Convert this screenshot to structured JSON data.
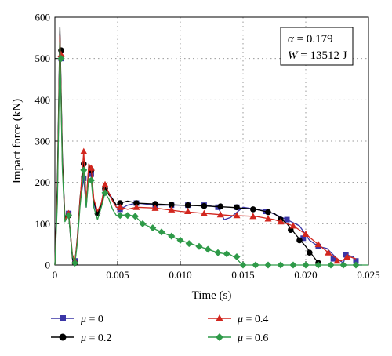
{
  "chart_data": {
    "type": "line",
    "title": "",
    "xlabel": "Time (s)",
    "ylabel": "Impact force (kN)",
    "xlim": [
      0,
      0.025
    ],
    "ylim": [
      0,
      600
    ],
    "x_ticks": [
      "0",
      "0.005",
      "0.010",
      "0.015",
      "0.020",
      "0.025"
    ],
    "y_ticks": [
      "0",
      "100",
      "200",
      "300",
      "400",
      "500",
      "600"
    ],
    "grid": true,
    "legend_position": "bottom",
    "annotation": {
      "line1_symbol": "α",
      "line1_value": " = 0.179",
      "line2_symbol": "W",
      "line2_value": " = 13512 J"
    },
    "series": [
      {
        "name": "μ = 0",
        "label_symbol": "μ",
        "label_value": " = 0",
        "color": "#3a35a6",
        "marker": "square",
        "x": [
          0,
          0.0002,
          0.0004,
          0.0006,
          0.0008,
          0.0011,
          0.0014,
          0.0016,
          0.0018,
          0.002,
          0.0023,
          0.0025,
          0.0027,
          0.0029,
          0.0031,
          0.0034,
          0.0037,
          0.004,
          0.0043,
          0.0046,
          0.0049,
          0.0052,
          0.0058,
          0.0065,
          0.008,
          0.01,
          0.012,
          0.013,
          0.0135,
          0.014,
          0.015,
          0.017,
          0.0185,
          0.0195,
          0.0203,
          0.021,
          0.0217,
          0.0225,
          0.023,
          0.0232,
          0.0238,
          0.0242,
          0.0245
        ],
        "y": [
          0,
          180,
          560,
          250,
          110,
          125,
          20,
          10,
          60,
          150,
          210,
          140,
          230,
          220,
          150,
          120,
          150,
          190,
          175,
          160,
          140,
          135,
          145,
          150,
          145,
          145,
          145,
          140,
          110,
          115,
          140,
          130,
          110,
          95,
          60,
          45,
          40,
          15,
          5,
          25,
          20,
          0,
          0
        ],
        "markers_x": [
          0.0005,
          0.0011,
          0.0016,
          0.0023,
          0.0029,
          0.004,
          0.0052,
          0.0065,
          0.008,
          0.0093,
          0.0106,
          0.0119,
          0.013,
          0.0145,
          0.0168,
          0.0185,
          0.0198,
          0.021,
          0.0222,
          0.0232,
          0.024
        ],
        "markers_y": [
          500,
          125,
          10,
          210,
          220,
          185,
          135,
          150,
          145,
          145,
          145,
          145,
          140,
          140,
          130,
          110,
          65,
          45,
          15,
          25,
          10
        ]
      },
      {
        "name": "μ = 0.2",
        "label_symbol": "μ",
        "label_value": " = 0.2",
        "color": "#000000",
        "marker": "circle",
        "x": [
          0,
          0.0002,
          0.0004,
          0.0006,
          0.0008,
          0.0011,
          0.0014,
          0.0016,
          0.0018,
          0.002,
          0.0023,
          0.0025,
          0.0027,
          0.0029,
          0.0031,
          0.0034,
          0.0037,
          0.004,
          0.0043,
          0.0046,
          0.0049,
          0.0052,
          0.0058,
          0.0065,
          0.008,
          0.01,
          0.012,
          0.014,
          0.016,
          0.0175,
          0.0185,
          0.0193,
          0.02,
          0.0205,
          0.021
        ],
        "y": [
          0,
          200,
          575,
          260,
          115,
          120,
          15,
          5,
          70,
          160,
          245,
          150,
          240,
          230,
          155,
          125,
          145,
          185,
          170,
          160,
          145,
          150,
          155,
          150,
          148,
          145,
          143,
          140,
          135,
          125,
          100,
          70,
          45,
          25,
          5
        ],
        "markers_x": [
          0.0005,
          0.0011,
          0.0016,
          0.0023,
          0.0029,
          0.0034,
          0.004,
          0.0052,
          0.0065,
          0.008,
          0.0093,
          0.0106,
          0.0119,
          0.0132,
          0.0145,
          0.0158,
          0.017,
          0.018,
          0.0188,
          0.0195,
          0.0203,
          0.021
        ],
        "markers_y": [
          520,
          120,
          5,
          245,
          230,
          125,
          185,
          150,
          150,
          148,
          146,
          145,
          143,
          142,
          140,
          135,
          128,
          110,
          85,
          60,
          30,
          5
        ]
      },
      {
        "name": "μ = 0.4",
        "label_symbol": "μ",
        "label_value": " = 0.4",
        "color": "#d2261e",
        "marker": "triangle",
        "x": [
          0,
          0.0002,
          0.0004,
          0.0006,
          0.0008,
          0.0011,
          0.0014,
          0.0016,
          0.0018,
          0.002,
          0.0023,
          0.0025,
          0.0027,
          0.0029,
          0.0031,
          0.0034,
          0.0037,
          0.004,
          0.0043,
          0.0046,
          0.0049,
          0.0052,
          0.0058,
          0.0065,
          0.008,
          0.01,
          0.012,
          0.014,
          0.016,
          0.0175,
          0.019,
          0.02,
          0.021,
          0.022,
          0.0228,
          0.0235,
          0.024
        ],
        "y": [
          0,
          170,
          555,
          240,
          110,
          125,
          25,
          10,
          65,
          155,
          275,
          150,
          245,
          235,
          160,
          130,
          150,
          195,
          175,
          155,
          140,
          140,
          135,
          140,
          138,
          130,
          125,
          120,
          118,
          110,
          95,
          75,
          50,
          25,
          10,
          20,
          15
        ],
        "markers_x": [
          0.0005,
          0.0011,
          0.0016,
          0.0023,
          0.0029,
          0.004,
          0.0052,
          0.0065,
          0.008,
          0.0093,
          0.0106,
          0.0119,
          0.0132,
          0.0145,
          0.0158,
          0.017,
          0.018,
          0.019,
          0.02,
          0.021,
          0.0218,
          0.0225,
          0.0233
        ],
        "markers_y": [
          510,
          125,
          10,
          275,
          235,
          195,
          140,
          140,
          138,
          134,
          130,
          125,
          122,
          120,
          118,
          112,
          105,
          95,
          75,
          50,
          30,
          10,
          20
        ]
      },
      {
        "name": "μ = 0.6",
        "label_symbol": "μ",
        "label_value": " = 0.6",
        "color": "#2e9a48",
        "marker": "diamond",
        "x": [
          0,
          0.0002,
          0.0004,
          0.0006,
          0.0008,
          0.0011,
          0.0014,
          0.0016,
          0.0018,
          0.002,
          0.0023,
          0.0025,
          0.0027,
          0.0029,
          0.0031,
          0.0034,
          0.0037,
          0.004,
          0.0043,
          0.0046,
          0.0049,
          0.0052,
          0.0058,
          0.0064,
          0.007,
          0.0085,
          0.01,
          0.0115,
          0.013,
          0.014,
          0.0145,
          0.0148,
          0.015,
          0.016,
          0.018,
          0.02,
          0.022,
          0.024,
          0.025
        ],
        "y": [
          0,
          150,
          540,
          230,
          105,
          120,
          20,
          5,
          55,
          140,
          230,
          140,
          210,
          205,
          140,
          110,
          140,
          175,
          160,
          135,
          120,
          120,
          122,
          118,
          100,
          80,
          60,
          45,
          30,
          25,
          15,
          5,
          0,
          0,
          0,
          0,
          0,
          0,
          0
        ],
        "markers_x": [
          0.0005,
          0.0011,
          0.0016,
          0.0023,
          0.0029,
          0.004,
          0.0052,
          0.0058,
          0.0064,
          0.007,
          0.0078,
          0.0085,
          0.0093,
          0.01,
          0.0107,
          0.0115,
          0.0122,
          0.013,
          0.0137,
          0.0145,
          0.015,
          0.016,
          0.017,
          0.018,
          0.019,
          0.02,
          0.021,
          0.022,
          0.023,
          0.024
        ],
        "markers_y": [
          500,
          120,
          5,
          230,
          205,
          175,
          120,
          120,
          118,
          100,
          90,
          80,
          70,
          60,
          52,
          45,
          38,
          30,
          27,
          20,
          0,
          0,
          0,
          0,
          0,
          0,
          0,
          0,
          0,
          0
        ]
      }
    ]
  }
}
